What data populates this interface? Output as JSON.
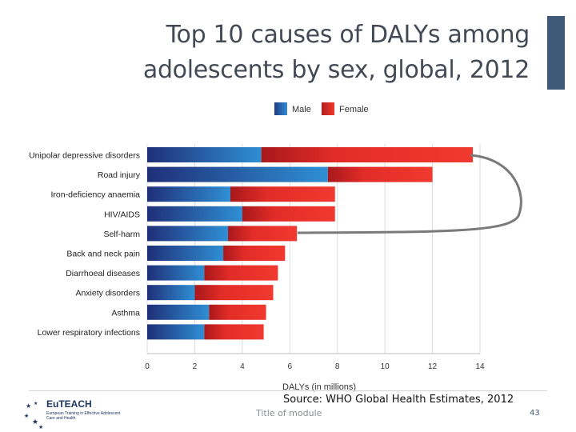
{
  "slide": {
    "title_line1": "Top 10 causes of DALYs among",
    "title_line2": "adolescents by sex, global, 2012",
    "source": "Source: WHO Global Health Estimates, 2012",
    "module": "Title of module",
    "page_number": "43",
    "logo_name": "EuTEACH",
    "logo_subtitle": "European Training in Effective Adolescent Care and Health",
    "accent_color": "#3f5a78"
  },
  "chart_data": {
    "type": "bar",
    "orientation": "horizontal",
    "stacked": true,
    "title": "",
    "xlabel": "DALYs (in millions)",
    "ylabel": "",
    "xlim": [
      0,
      14
    ],
    "xticks": [
      0,
      2,
      4,
      6,
      8,
      10,
      12,
      14
    ],
    "legend_position": "top-center",
    "categories": [
      "Unipolar depressive disorders",
      "Road injury",
      "Iron-deficiency anaemia",
      "HIV/AIDS",
      "Self-harm",
      "Back and neck pain",
      "Diarrhoeal diseases",
      "Anxiety disorders",
      "Asthma",
      "Lower respiratory infections"
    ],
    "series": [
      {
        "name": "Male",
        "color": "#2f7fc4",
        "values": [
          4.8,
          7.6,
          3.5,
          4.0,
          3.4,
          3.2,
          2.4,
          2.0,
          2.6,
          2.4
        ]
      },
      {
        "name": "Female",
        "color": "#e8302a",
        "values": [
          8.9,
          4.4,
          4.4,
          3.9,
          2.9,
          2.6,
          3.1,
          3.3,
          2.4,
          2.5
        ]
      }
    ],
    "annotation": "bracket connecting Unipolar depressive disorders and Self-harm"
  }
}
